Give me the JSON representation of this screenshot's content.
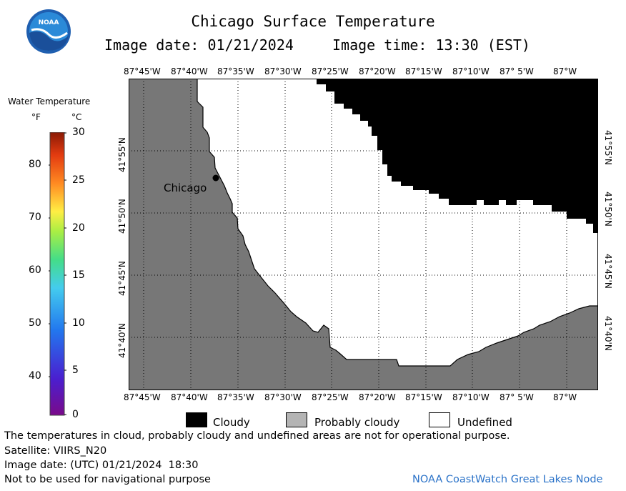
{
  "header": {
    "title": "Chicago Surface Temperature",
    "image_date": "Image date: 01/21/2024",
    "image_time": "Image time: 13:30 (EST)"
  },
  "logo": {
    "text": "NOAA"
  },
  "colorbar": {
    "title": "Water Temperature",
    "unit_f": "°F",
    "unit_c": "°C",
    "f_ticks": [
      "80",
      "70",
      "60",
      "50",
      "40"
    ],
    "c_ticks": [
      "30",
      "25",
      "20",
      "15",
      "10",
      "5",
      "0"
    ]
  },
  "map": {
    "lon_labels": [
      "87°45'W",
      "87°40'W",
      "87°35'W",
      "87°30'W",
      "87°25'W",
      "87°20'W",
      "87°15'W",
      "87°10'W",
      "87° 5'W",
      "87°W"
    ],
    "lat_labels": [
      "41°55'N",
      "41°50'N",
      "41°45'N",
      "41°40'N"
    ],
    "city_label": "Chicago",
    "colors": {
      "land": "#777777",
      "cloudy": "#000000",
      "undefined": "#ffffff",
      "grid": "#000000"
    }
  },
  "legend": {
    "cloudy": "Cloudy",
    "probably_cloudy": "Probably cloudy",
    "undefined": "Undefined"
  },
  "footer": {
    "note": "The temperatures in cloud, probably cloudy and undefined areas are not for operational purpose.",
    "satellite": "Satellite: VIIRS_N20",
    "utc_date": "Image date: (UTC) 01/21/2024  18:30",
    "nav_warning": "Not to be used for navigational purpose",
    "credit": "NOAA CoastWatch Great Lakes Node"
  }
}
